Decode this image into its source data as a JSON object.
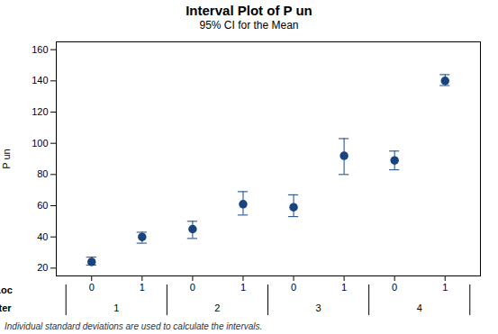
{
  "chart_data": {
    "type": "interval",
    "title": "Interval Plot of P un",
    "subtitle": "95% CI for the Mean",
    "ylabel": "P un",
    "xlabel": "Loc",
    "x_group_label": "Iter",
    "categories": [
      "0",
      "1",
      "0",
      "1",
      "0",
      "1",
      "0",
      "1"
    ],
    "x_groups": [
      "1",
      "1",
      "2",
      "2",
      "3",
      "3",
      "4",
      "4"
    ],
    "values": [
      24,
      40,
      45,
      61,
      59,
      92,
      89,
      140
    ],
    "ci_low": [
      22,
      36,
      39,
      54,
      53,
      80,
      83,
      137
    ],
    "ci_high": [
      27,
      43,
      50,
      69,
      67,
      103,
      95,
      144
    ],
    "color": "#1a4480",
    "marker": "circle",
    "ylim": [
      15,
      165
    ],
    "yticks": [
      20,
      40,
      60,
      80,
      100,
      120,
      140,
      160
    ],
    "grid": false,
    "footnote": "Individual standard deviations are used to calculate the intervals."
  }
}
